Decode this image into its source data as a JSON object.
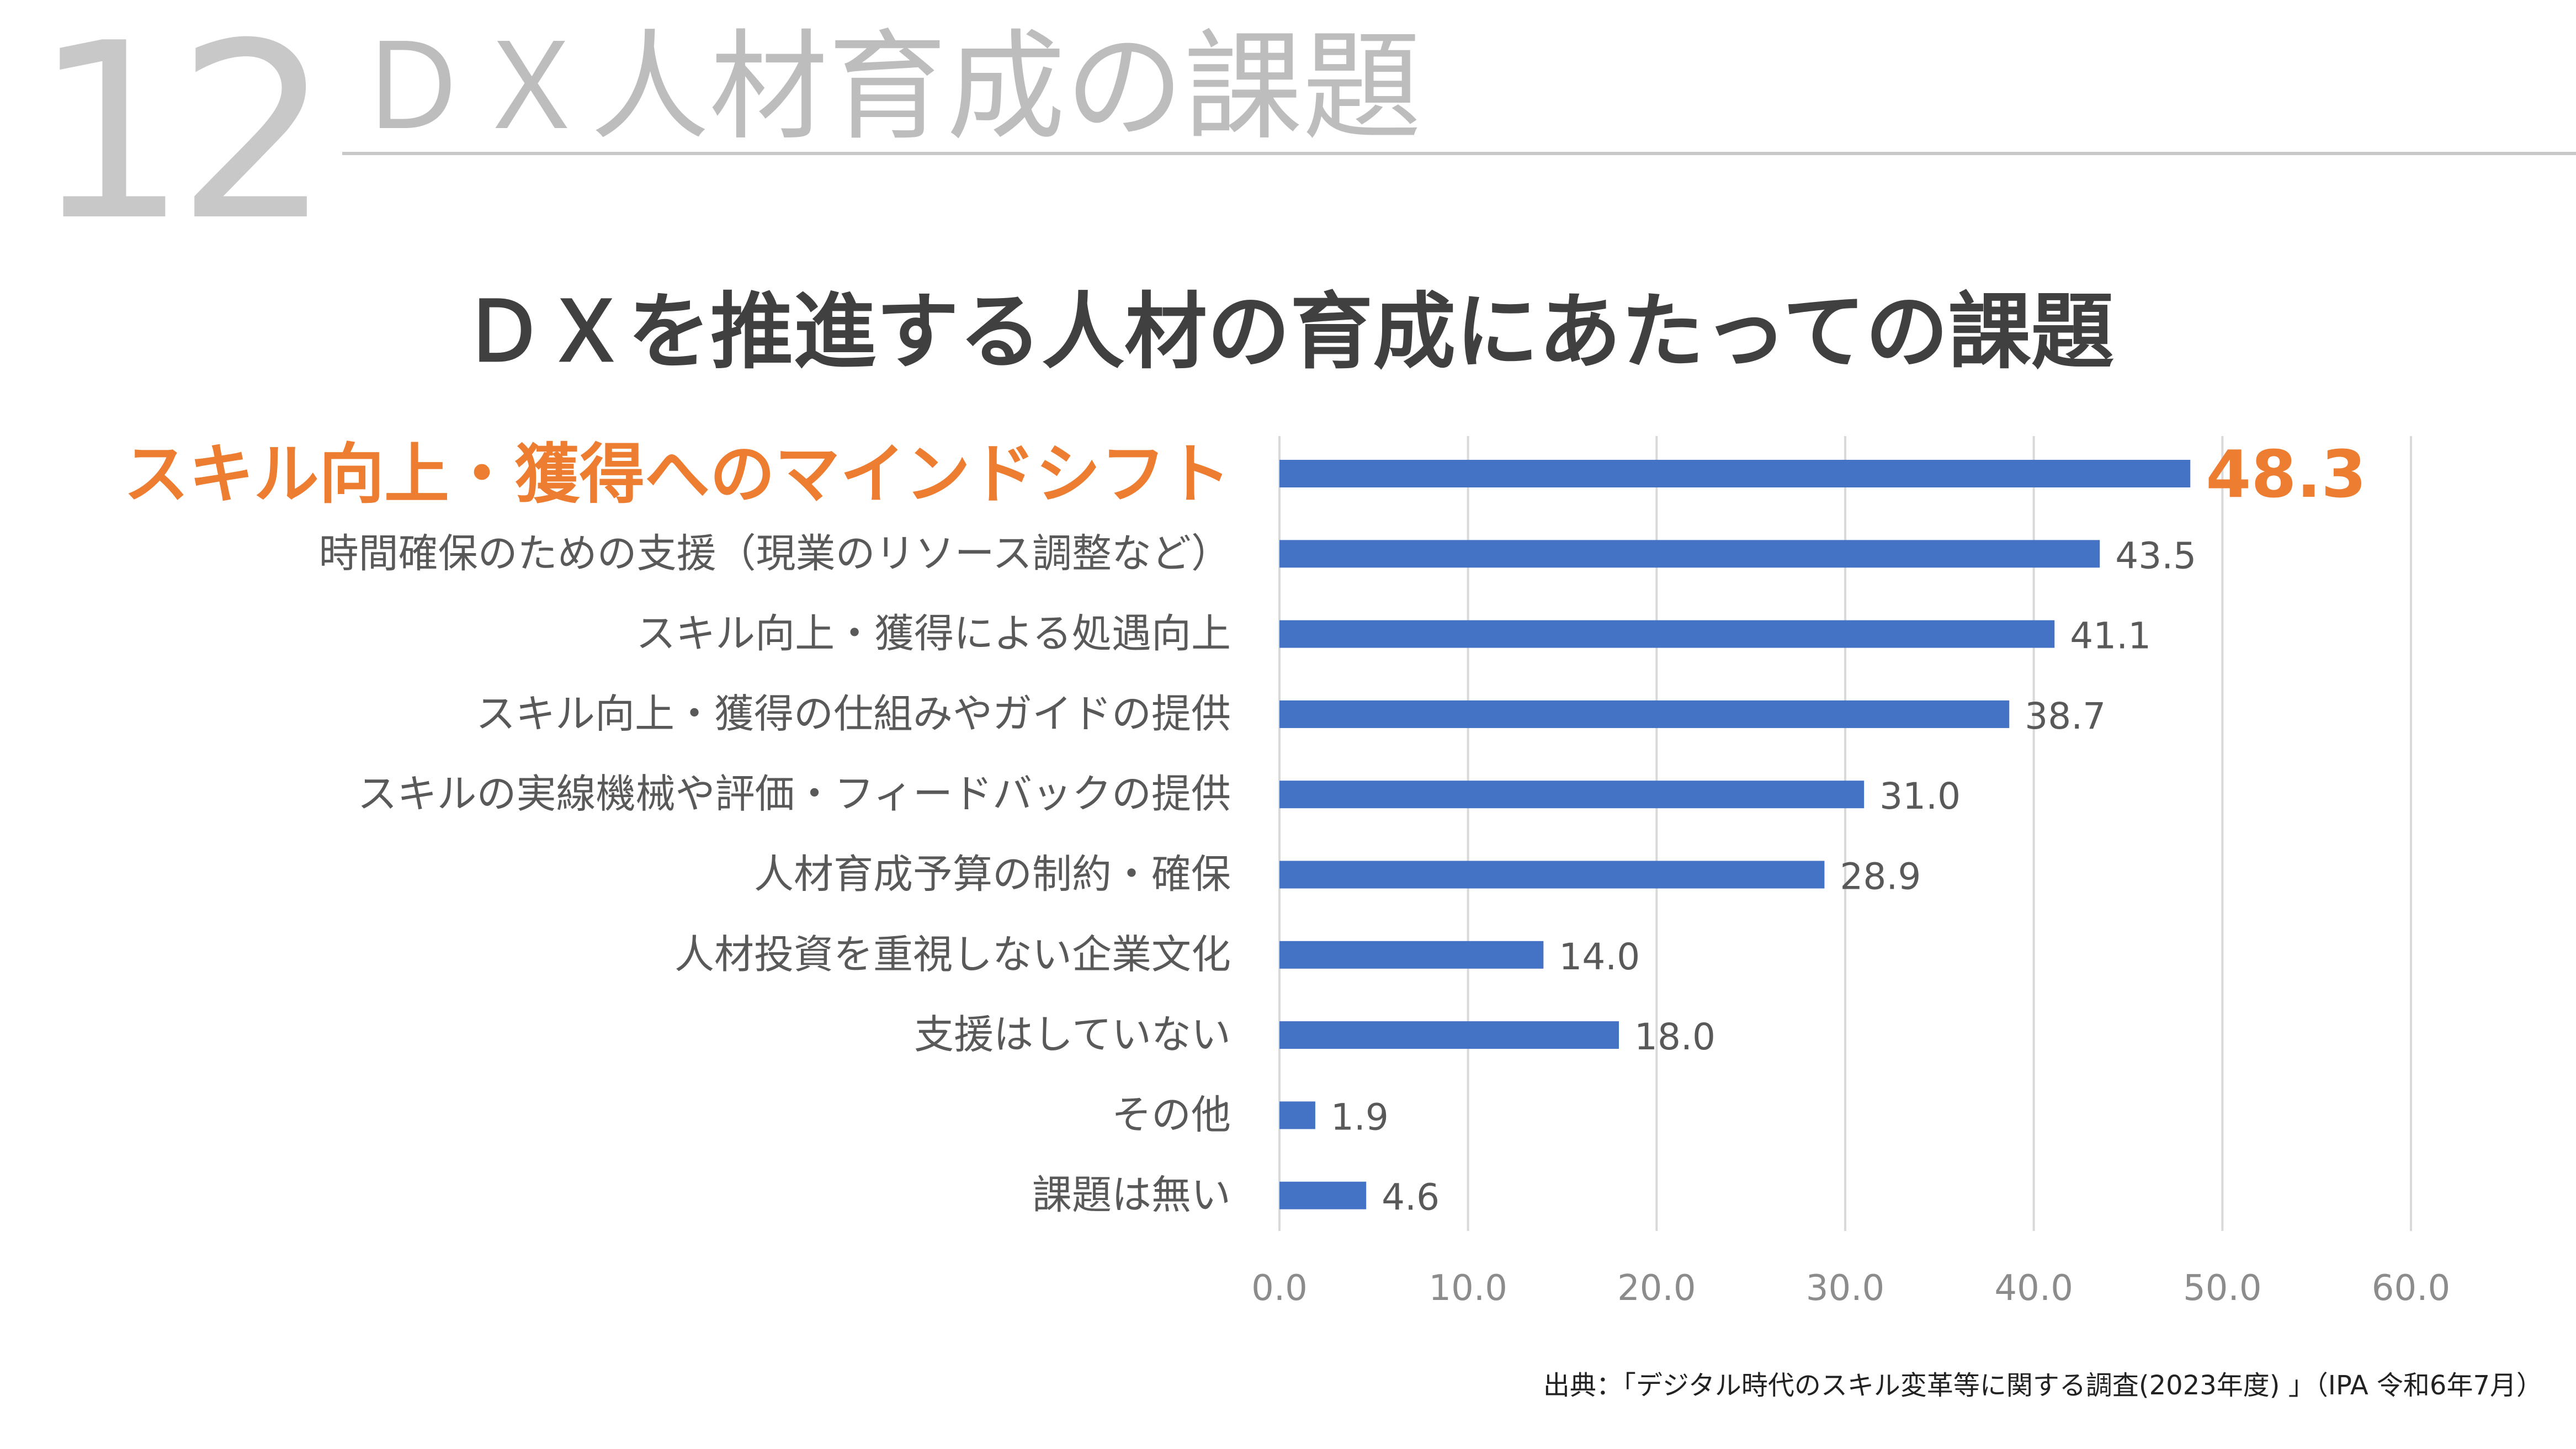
{
  "slide": {
    "number": "12",
    "section_title": "ＤＸ人材育成の課題",
    "source": "出典：「デジタル時代のスキル変革等に関する調査(2023年度) 」（IPA 令和6年7月）"
  },
  "colors": {
    "bar": "#4472c4",
    "highlight": "#ed7d31",
    "label": "#595959",
    "grid": "#d9d9d9",
    "axis_text": "#8c8c8c"
  },
  "chart_data": {
    "type": "bar",
    "orientation": "horizontal",
    "title": "ＤＸを推進する人材の育成にあたっての課題",
    "categories": [
      "スキル向上・獲得へのマインドシフト",
      "時間確保のための支援（現業のリソース調整など）",
      "スキル向上・獲得による処遇向上",
      "スキル向上・獲得の仕組みやガイドの提供",
      "スキルの実線機械や評価・フィードバックの提供",
      "人材育成予算の制約・確保",
      "人材投資を重視しない企業文化",
      "支援はしていない",
      "その他",
      "課題は無い"
    ],
    "values": [
      48.3,
      43.5,
      41.1,
      38.7,
      31.0,
      28.9,
      14.0,
      18.0,
      1.9,
      4.6
    ],
    "value_labels": [
      "48.3",
      "43.5",
      "41.1",
      "38.7",
      "31.0",
      "28.9",
      "14.0",
      "18.0",
      "1.9",
      "4.6"
    ],
    "highlight_index": 0,
    "xlim": [
      0,
      60
    ],
    "xticks": [
      0,
      10,
      20,
      30,
      40,
      50,
      60
    ],
    "xtick_labels": [
      "0.0",
      "10.0",
      "20.0",
      "30.0",
      "40.0",
      "50.0",
      "60.0"
    ],
    "grid": true,
    "xlabel": "",
    "ylabel": ""
  }
}
